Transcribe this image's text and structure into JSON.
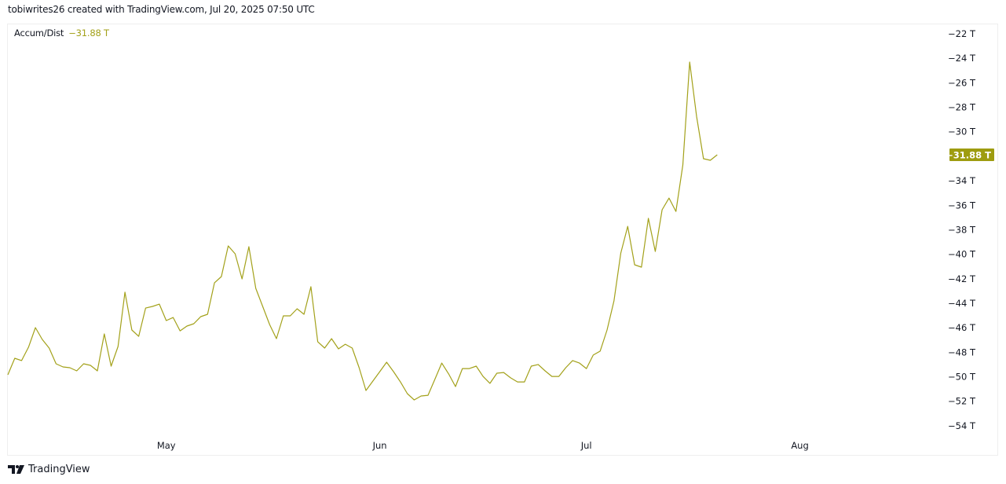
{
  "header": {
    "text": "tobiwrites26 created with TradingView.com, Jul 20, 2025 07:50 UTC"
  },
  "legend": {
    "name": "Accum/Dist",
    "value": "−31.88 T"
  },
  "footer": {
    "brand": "TradingView",
    "logo_icon": "tradingview-logo-icon"
  },
  "colors": {
    "line": "#a3a11a",
    "label_bg": "#9e9c10",
    "label_text": "#ffffff",
    "axis_text": "#131722"
  },
  "chart_data": {
    "type": "line",
    "title": "",
    "xlabel": "",
    "ylabel": "",
    "x_first": "2025-04-08",
    "x_last": "2025-07-20",
    "interval": "1D",
    "xlim": [
      "2025-04-08",
      "2025-08-22"
    ],
    "ylim": [
      -55,
      -21
    ],
    "unit": "T",
    "grid": false,
    "x_ticks": [
      {
        "label": "May",
        "date": "2025-05-01"
      },
      {
        "label": "Jun",
        "date": "2025-06-01"
      },
      {
        "label": "Jul",
        "date": "2025-07-01"
      },
      {
        "label": "Aug",
        "date": "2025-08-01"
      }
    ],
    "y_ticks": [
      {
        "label": "−22 T",
        "value": -22
      },
      {
        "label": "−24 T",
        "value": -24
      },
      {
        "label": "−26 T",
        "value": -26
      },
      {
        "label": "−28 T",
        "value": -28
      },
      {
        "label": "−30 T",
        "value": -30
      },
      {
        "label": "−34 T",
        "value": -34
      },
      {
        "label": "−36 T",
        "value": -36
      },
      {
        "label": "−38 T",
        "value": -38
      },
      {
        "label": "−40 T",
        "value": -40
      },
      {
        "label": "−42 T",
        "value": -42
      },
      {
        "label": "−44 T",
        "value": -44
      },
      {
        "label": "−46 T",
        "value": -46
      },
      {
        "label": "−48 T",
        "value": -48
      },
      {
        "label": "−50 T",
        "value": -50
      },
      {
        "label": "−52 T",
        "value": -52
      },
      {
        "label": "−54 T",
        "value": -54
      }
    ],
    "last_value_label": {
      "label": "−31.88 T",
      "value": -31.88
    },
    "series": [
      {
        "values": [
          -49.84,
          -48.49,
          -48.68,
          -47.59,
          -45.99,
          -46.95,
          -47.66,
          -48.94,
          -49.2,
          -49.26,
          -49.52,
          -48.94,
          -49.07,
          -49.52,
          -46.5,
          -49.13,
          -47.53,
          -43.1,
          -46.18,
          -46.7,
          -44.39,
          -44.26,
          -44.07,
          -45.41,
          -45.16,
          -46.25,
          -45.86,
          -45.67,
          -45.09,
          -44.9,
          -42.33,
          -41.82,
          -39.32,
          -39.96,
          -42.01,
          -39.38,
          -42.78,
          -44.26,
          -45.73,
          -46.89,
          -45.03,
          -45.03,
          -44.45,
          -44.9,
          -42.65,
          -47.14,
          -47.66,
          -46.89,
          -47.72,
          -47.34,
          -47.66,
          -49.26,
          -51.12,
          -50.35,
          -49.58,
          -48.81,
          -49.58,
          -50.42,
          -51.38,
          -51.89,
          -51.57,
          -51.51,
          -50.22,
          -48.88,
          -49.77,
          -50.8,
          -49.33,
          -49.33,
          -49.13,
          -49.97,
          -50.54,
          -49.71,
          -49.65,
          -50.09,
          -50.42,
          -50.42,
          -49.13,
          -49.0,
          -49.52,
          -49.97,
          -49.97,
          -49.26,
          -48.68,
          -48.88,
          -49.33,
          -48.23,
          -47.91,
          -46.18,
          -43.81,
          -39.9,
          -37.72,
          -40.86,
          -41.05,
          -37.07,
          -39.77,
          -36.37,
          -35.41,
          -36.5,
          -32.71,
          -24.31,
          -28.74,
          -32.2,
          -32.33,
          -31.88
        ]
      }
    ]
  }
}
